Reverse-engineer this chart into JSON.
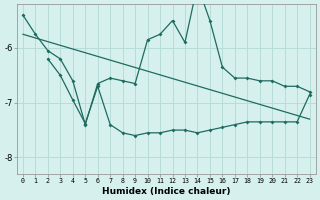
{
  "xlabel": "Humidex (Indice chaleur)",
  "bg_color": "#d6f0ee",
  "line_color": "#1e6b60",
  "grid_color": "#b8ddd9",
  "xlim": [
    -0.5,
    23.5
  ],
  "ylim": [
    -8.3,
    -5.2
  ],
  "yticks": [
    -8,
    -7,
    -6
  ],
  "xticks": [
    0,
    1,
    2,
    3,
    4,
    5,
    6,
    7,
    8,
    9,
    10,
    11,
    12,
    13,
    14,
    15,
    16,
    17,
    18,
    19,
    20,
    21,
    22,
    23
  ],
  "upper_x": [
    0,
    1,
    2,
    3,
    4,
    5,
    6,
    7,
    8,
    9,
    10,
    11,
    12,
    13,
    14,
    15,
    16,
    17,
    18,
    19,
    20,
    21,
    22,
    23
  ],
  "upper_y": [
    -5.4,
    -5.75,
    -6.05,
    -6.2,
    -6.6,
    -7.4,
    -6.65,
    -6.55,
    -6.6,
    -6.65,
    -5.85,
    -5.75,
    -5.5,
    -5.9,
    -4.85,
    -5.5,
    -6.35,
    -6.55,
    -6.55,
    -6.6,
    -6.6,
    -6.7,
    -6.7,
    -6.8
  ],
  "lower_x": [
    2,
    3,
    4,
    5,
    6,
    7,
    8,
    9,
    10,
    11,
    12,
    13,
    14,
    15,
    16,
    17,
    18,
    19,
    20,
    21,
    22,
    23
  ],
  "lower_y": [
    -6.2,
    -6.5,
    -6.95,
    -7.38,
    -6.7,
    -7.4,
    -7.55,
    -7.6,
    -7.55,
    -7.55,
    -7.5,
    -7.5,
    -7.55,
    -7.5,
    -7.45,
    -7.4,
    -7.35,
    -7.35,
    -7.35,
    -7.35,
    -7.35,
    -6.85
  ],
  "trend_x": [
    0,
    23
  ],
  "trend_y": [
    -5.75,
    -7.3
  ]
}
